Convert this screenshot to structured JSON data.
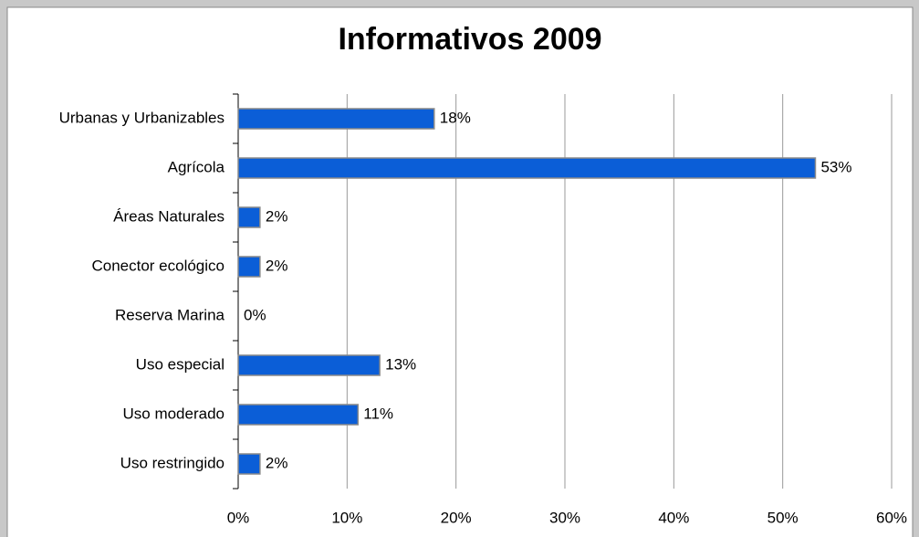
{
  "chart_data": {
    "type": "bar",
    "orientation": "horizontal",
    "title": "Informativos 2009",
    "categories": [
      "Urbanas y Urbanizables",
      "Agrícola",
      "Áreas Naturales",
      "Conector ecológico",
      "Reserva Marina",
      "Uso especial",
      "Uso moderado",
      "Uso restringido"
    ],
    "values": [
      18,
      53,
      2,
      2,
      0,
      13,
      11,
      2
    ],
    "value_labels": [
      "18%",
      "53%",
      "2%",
      "2%",
      "0%",
      "13%",
      "11%",
      "2%"
    ],
    "color": "#0b5ed7",
    "xlim": [
      0,
      60
    ],
    "xticks": [
      {
        "value": 0,
        "label": "0%"
      },
      {
        "value": 10,
        "label": "10%"
      },
      {
        "value": 20,
        "label": "20%"
      },
      {
        "value": 30,
        "label": "30%"
      },
      {
        "value": 40,
        "label": "40%"
      },
      {
        "value": 50,
        "label": "50%"
      },
      {
        "value": 60,
        "label": "60%"
      }
    ],
    "grid": true
  }
}
